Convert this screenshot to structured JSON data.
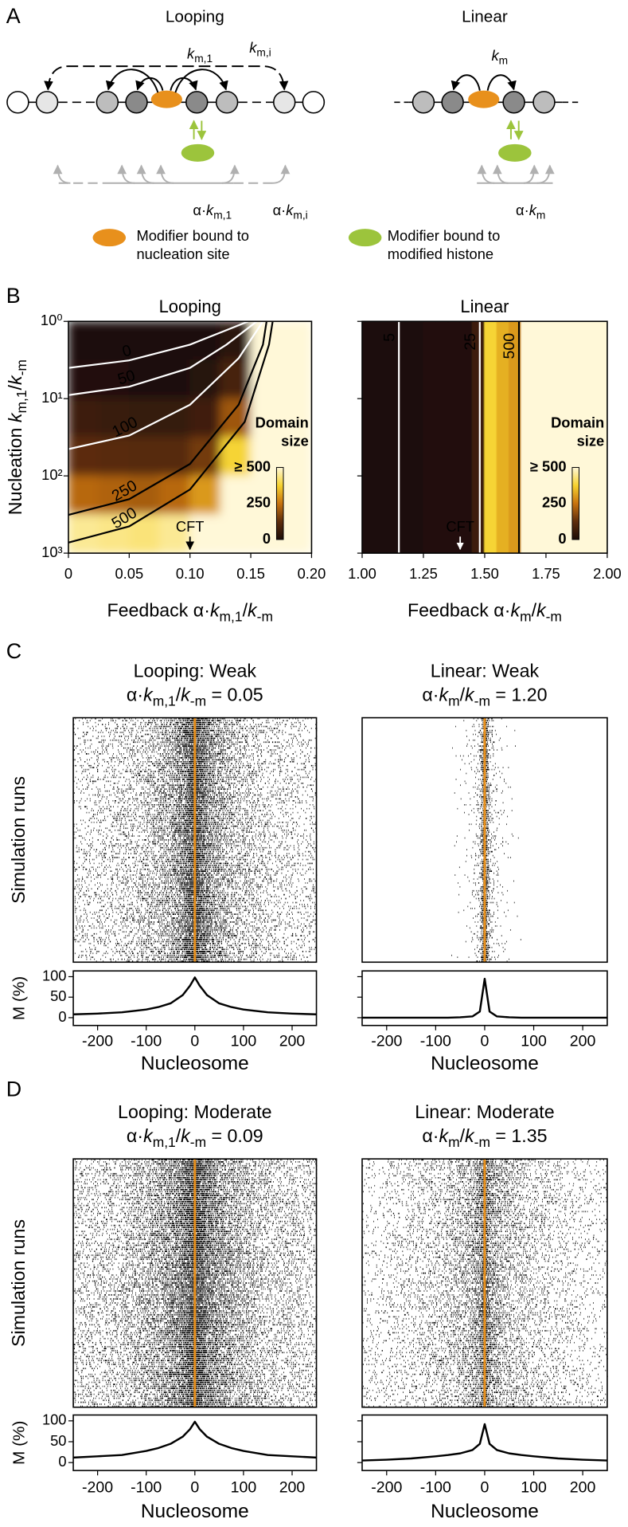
{
  "panel_labels": [
    "A",
    "B",
    "C",
    "D"
  ],
  "panel_a": {
    "titles": [
      "Looping",
      "Linear"
    ],
    "rates": [
      {
        "parts": [
          {
            "text": "k",
            "style": "italic"
          },
          {
            "text": "m,1",
            "style": "sub"
          }
        ]
      },
      {
        "parts": [
          {
            "text": "k",
            "style": "italic"
          },
          {
            "text": "m,i",
            "style": "sub"
          }
        ]
      },
      {
        "parts": [
          {
            "text": "k",
            "style": "italic"
          },
          {
            "text": "m",
            "style": "sub"
          }
        ]
      },
      {
        "parts": [
          {
            "text": "α·"
          },
          {
            "text": "k",
            "style": "italic"
          },
          {
            "text": "m,1",
            "style": "sub"
          }
        ]
      },
      {
        "parts": [
          {
            "text": "α·"
          },
          {
            "text": "k",
            "style": "italic"
          },
          {
            "text": "m,i",
            "style": "sub"
          }
        ]
      },
      {
        "parts": [
          {
            "text": "α·"
          },
          {
            "text": "k",
            "style": "italic"
          },
          {
            "text": "m",
            "style": "sub"
          }
        ]
      }
    ],
    "legend": [
      {
        "lines": [
          "Modifier bound to",
          "nucleation site"
        ],
        "color": "#e8901c"
      },
      {
        "lines": [
          "Modifier bound to",
          "modified histone"
        ],
        "color": "#9cc43c"
      }
    ]
  },
  "chart_data": [
    {
      "type": "heatmap",
      "title": "Looping",
      "xlabel": {
        "parts": [
          {
            "text": "Feedback α·"
          },
          {
            "text": "k",
            "style": "italic"
          },
          {
            "text": "m,1",
            "style": "sub"
          },
          {
            "text": "/"
          },
          {
            "text": "k",
            "style": "italic"
          },
          {
            "text": "-m",
            "style": "sub"
          }
        ]
      },
      "ylabel": {
        "parts": [
          {
            "text": "Nucleation "
          },
          {
            "text": "k",
            "style": "italic"
          },
          {
            "text": "m,1",
            "style": "sub"
          },
          {
            "text": "/"
          },
          {
            "text": "k",
            "style": "italic"
          },
          {
            "text": "-m",
            "style": "sub"
          }
        ]
      },
      "xlim": [
        0,
        0.2
      ],
      "xticks": [
        0,
        0.05,
        {
          "value": 0.1,
          "label": "0.10"
        },
        0.15,
        {
          "value": 0.2,
          "label": "0.20"
        }
      ],
      "ylim": [
        1000,
        1
      ],
      "ylog": true,
      "yticks": [
        {
          "value": 1,
          "label": "10⁰"
        },
        {
          "value": 10,
          "label": "10¹"
        },
        {
          "value": 100,
          "label": "10²"
        },
        {
          "value": 1000,
          "label": "10³"
        }
      ],
      "xbins": [
        0,
        0.025,
        0.05,
        0.075,
        0.1,
        0.125,
        0.15,
        0.175,
        0.2
      ],
      "ybins": [
        1,
        3.16,
        10,
        31.6,
        100,
        316,
        1000
      ],
      "z": [
        [
          0,
          0,
          0,
          0,
          0,
          30,
          500,
          500
        ],
        [
          10,
          10,
          5,
          5,
          20,
          80,
          500,
          500
        ],
        [
          60,
          55,
          50,
          50,
          70,
          200,
          500,
          500
        ],
        [
          120,
          115,
          110,
          110,
          150,
          380,
          500,
          500
        ],
        [
          230,
          220,
          210,
          230,
          300,
          500,
          500,
          500
        ],
        [
          450,
          440,
          430,
          450,
          500,
          500,
          500,
          500
        ]
      ],
      "zlim": [
        0,
        500
      ],
      "colorscale": [
        "#1c0d07",
        "#5e2d0c",
        "#c8730f",
        "#f6d22f",
        "#fff8d8"
      ],
      "colorbar": {
        "title": [
          "Domain",
          "size"
        ],
        "ticks": [
          {
            "value": 500,
            "label": "≥ 500"
          },
          250,
          0
        ]
      },
      "contours": [
        {
          "level": 0,
          "color": "#ffffff",
          "x": [
            0,
            0.05,
            0.1,
            0.13,
            0.148
          ],
          "y": [
            4,
            3.2,
            2,
            1.3,
            1
          ]
        },
        {
          "level": 50,
          "color": "#ffffff",
          "x": [
            0,
            0.05,
            0.1,
            0.13,
            0.155
          ],
          "y": [
            9,
            7,
            4,
            2,
            1
          ]
        },
        {
          "level": 100,
          "color": "#ffffff",
          "x": [
            0,
            0.05,
            0.1,
            0.14,
            0.16
          ],
          "y": [
            45,
            30,
            12,
            3,
            1
          ]
        },
        {
          "level": 250,
          "color": "#000000",
          "x": [
            0,
            0.05,
            0.1,
            0.14,
            0.16,
            0.163
          ],
          "y": [
            320,
            200,
            70,
            12,
            2,
            1
          ]
        },
        {
          "level": 500,
          "color": "#000000",
          "x": [
            0,
            0.05,
            0.1,
            0.145,
            0.165,
            0.168
          ],
          "y": [
            730,
            450,
            150,
            20,
            2,
            1
          ]
        }
      ],
      "annotation": {
        "text": "CFT",
        "x": 0.1
      }
    },
    {
      "type": "heatmap",
      "title": "Linear",
      "xlabel": {
        "parts": [
          {
            "text": "Feedback α·"
          },
          {
            "text": "k",
            "style": "italic"
          },
          {
            "text": "m",
            "style": "sub"
          },
          {
            "text": "/"
          },
          {
            "text": "k",
            "style": "italic"
          },
          {
            "text": "-m",
            "style": "sub"
          }
        ]
      },
      "xlim": [
        1,
        2
      ],
      "xticks": [
        {
          "value": 1,
          "label": "1.00"
        },
        1.25,
        {
          "value": 1.5,
          "label": "1.50"
        },
        1.75,
        {
          "value": 2,
          "label": "2.00"
        }
      ],
      "ylim": [
        1000,
        1
      ],
      "ylog": true,
      "yticks": [
        1,
        10,
        100,
        1000
      ],
      "ytick_labels": false,
      "xbins": [
        1,
        1.05,
        1.1,
        1.15,
        1.2,
        1.25,
        1.3,
        1.35,
        1.4,
        1.45,
        1.5,
        1.55,
        1.6,
        1.65,
        1.7,
        1.75,
        1.8,
        1.85,
        1.9,
        1.95,
        2
      ],
      "ybins": [
        1,
        1000
      ],
      "z": [
        [
          5,
          5,
          5,
          5,
          5,
          8,
          10,
          12,
          15,
          60,
          380,
          330,
          300,
          500,
          500,
          500,
          500,
          500,
          500,
          500
        ]
      ],
      "zlim": [
        0,
        500
      ],
      "colorscale": [
        "#1c0d07",
        "#5e2d0c",
        "#c8730f",
        "#f6d22f",
        "#fff8d8"
      ],
      "colorbar": {
        "title": [
          "Domain",
          "size"
        ],
        "ticks": [
          {
            "value": 500,
            "label": "≥ 500"
          },
          250,
          0
        ]
      },
      "contours": [
        {
          "level": 5,
          "color": "#ffffff",
          "x": [
            1.15,
            1.15
          ],
          "y": [
            1,
            1000
          ]
        },
        {
          "level": 25,
          "color": "#ffffff",
          "x": [
            1.48,
            1.48
          ],
          "y": [
            1,
            1000
          ]
        },
        {
          "level": 500,
          "color": "#000000",
          "x": [
            1.64,
            1.64
          ],
          "y": [
            1,
            1000
          ]
        }
      ],
      "annotation": {
        "text": "CFT",
        "x": 1.4
      }
    },
    {
      "type": "line",
      "title": "Looping: Weak",
      "subtitle": {
        "parts": [
          {
            "text": "α·"
          },
          {
            "text": "k",
            "style": "italic"
          },
          {
            "text": "m,1",
            "style": "sub"
          },
          {
            "text": "/"
          },
          {
            "text": "k",
            "style": "italic"
          },
          {
            "text": "-m",
            "style": "sub"
          },
          {
            "text": " = 0.05"
          }
        ]
      },
      "raster_ylabel": "Simulation runs",
      "ylabel": "M (%)",
      "xlabel": "Nucleosome",
      "color": "#000000",
      "site_color": "#e8901c",
      "x": [
        -250,
        -200,
        -150,
        -100,
        -75,
        -50,
        -25,
        -10,
        0,
        10,
        25,
        50,
        75,
        100,
        150,
        200,
        250
      ],
      "values": [
        8,
        10,
        13,
        20,
        26,
        35,
        55,
        78,
        98,
        78,
        55,
        35,
        26,
        20,
        13,
        10,
        8
      ],
      "xlim": [
        -250,
        250
      ],
      "xticks": [
        -200,
        -100,
        0,
        100,
        200
      ],
      "ylim": [
        -19,
        114
      ],
      "yticks": [
        0,
        50,
        100
      ]
    },
    {
      "type": "line",
      "title": "Linear: Weak",
      "subtitle": {
        "parts": [
          {
            "text": "α·"
          },
          {
            "text": "k",
            "style": "italic"
          },
          {
            "text": "m",
            "style": "sub"
          },
          {
            "text": "/"
          },
          {
            "text": "k",
            "style": "italic"
          },
          {
            "text": "-m",
            "style": "sub"
          },
          {
            "text": " = 1.20"
          }
        ]
      },
      "xlabel": "Nucleosome",
      "color": "#000000",
      "site_color": "#e8901c",
      "x": [
        -250,
        -200,
        -150,
        -100,
        -75,
        -50,
        -25,
        -10,
        0,
        10,
        25,
        50,
        75,
        100,
        150,
        200,
        250
      ],
      "values": [
        0,
        0,
        0,
        0,
        0,
        1,
        3,
        15,
        95,
        15,
        3,
        1,
        0,
        0,
        0,
        0,
        0
      ],
      "xlim": [
        -250,
        250
      ],
      "xticks": [
        -200,
        -100,
        0,
        100,
        200
      ],
      "ylim": [
        -19,
        114
      ],
      "yticks": [
        0,
        50,
        100
      ],
      "ytick_labels": false
    },
    {
      "type": "line",
      "title": "Looping: Moderate",
      "subtitle": {
        "parts": [
          {
            "text": "α·"
          },
          {
            "text": "k",
            "style": "italic"
          },
          {
            "text": "m,1",
            "style": "sub"
          },
          {
            "text": "/"
          },
          {
            "text": "k",
            "style": "italic"
          },
          {
            "text": "-m",
            "style": "sub"
          },
          {
            "text": " = 0.09"
          }
        ]
      },
      "raster_ylabel": "Simulation runs",
      "ylabel": "M (%)",
      "xlabel": "Nucleosome",
      "color": "#000000",
      "site_color": "#e8901c",
      "x": [
        -250,
        -200,
        -150,
        -100,
        -75,
        -50,
        -25,
        -10,
        0,
        10,
        25,
        50,
        75,
        100,
        150,
        200,
        250
      ],
      "values": [
        12,
        15,
        18,
        28,
        35,
        45,
        62,
        80,
        98,
        80,
        62,
        45,
        35,
        28,
        18,
        15,
        12
      ],
      "xlim": [
        -250,
        250
      ],
      "xticks": [
        -200,
        -100,
        0,
        100,
        200
      ],
      "ylim": [
        -19,
        114
      ],
      "yticks": [
        0,
        50,
        100
      ]
    },
    {
      "type": "line",
      "title": "Linear: Moderate",
      "subtitle": {
        "parts": [
          {
            "text": "α·"
          },
          {
            "text": "k",
            "style": "italic"
          },
          {
            "text": "m",
            "style": "sub"
          },
          {
            "text": "/"
          },
          {
            "text": "k",
            "style": "italic"
          },
          {
            "text": "-m",
            "style": "sub"
          },
          {
            "text": " = 1.35"
          }
        ]
      },
      "xlabel": "Nucleosome",
      "color": "#000000",
      "site_color": "#e8901c",
      "x": [
        -250,
        -200,
        -150,
        -100,
        -75,
        -50,
        -25,
        -10,
        0,
        10,
        25,
        50,
        75,
        100,
        150,
        200,
        250
      ],
      "values": [
        5,
        7,
        10,
        15,
        18,
        22,
        30,
        45,
        92,
        45,
        30,
        22,
        18,
        15,
        10,
        7,
        5
      ],
      "xlim": [
        -250,
        250
      ],
      "xticks": [
        -200,
        -100,
        0,
        100,
        200
      ],
      "ylim": [
        -19,
        114
      ],
      "yticks": [
        0,
        50,
        100
      ],
      "ytick_labels": false
    }
  ]
}
